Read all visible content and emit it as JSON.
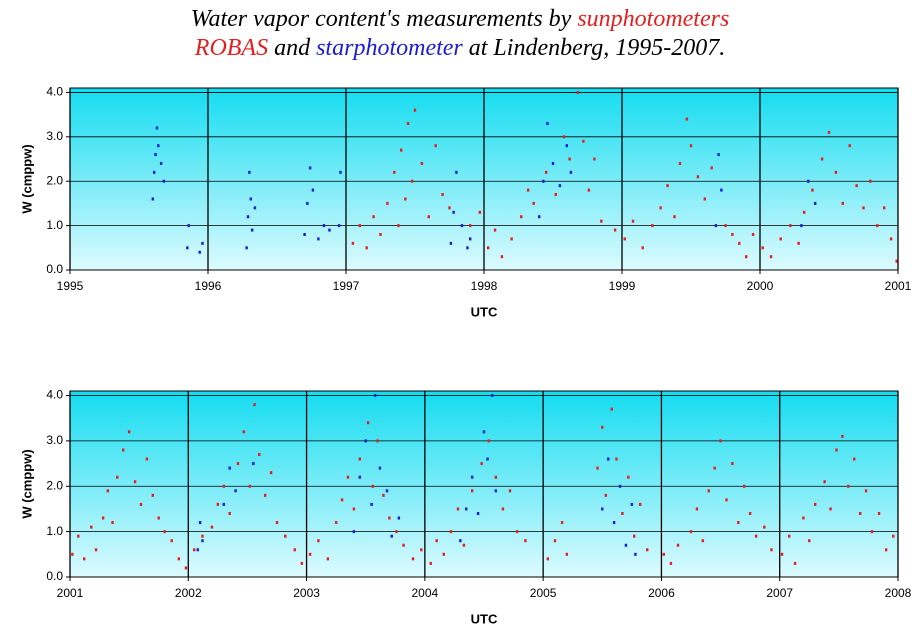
{
  "title": [
    [
      {
        "text": "Water vapor content's measurements by ",
        "color": "#000000"
      },
      {
        "text": "sunphotometers",
        "color": "#e81e1e"
      }
    ],
    [
      {
        "text": "ROBAS",
        "color": "#e81e1e"
      },
      {
        "text": " and ",
        "color": "#000000"
      },
      {
        "text": "starphotometer",
        "color": "#1a1ad8"
      },
      {
        "text": "  at Lindenberg, 1995-2007.",
        "color": "#000000"
      }
    ]
  ],
  "chart_data": [
    {
      "type": "scatter",
      "xlabel": "UTC",
      "ylabel": "W (cmppw)",
      "xlim": [
        1995,
        2001
      ],
      "xticks": [
        1995,
        1996,
        1997,
        1998,
        1999,
        2000,
        2001
      ],
      "ylim": [
        0,
        4.1
      ],
      "yticks": [
        {
          "value": 0,
          "label": "0.0"
        },
        {
          "value": 1,
          "label": "1.0"
        },
        {
          "value": 2,
          "label": "2.0"
        },
        {
          "value": 3,
          "label": "3.0"
        },
        {
          "value": 4,
          "label": "4.0"
        }
      ],
      "grid": true,
      "series": [
        {
          "color": "#e81e1e",
          "x": [
            1997.05,
            1997.1,
            1997.15,
            1997.2,
            1997.25,
            1997.3,
            1997.35,
            1997.38,
            1997.4,
            1997.43,
            1997.45,
            1997.48,
            1997.5,
            1997.55,
            1997.6,
            1997.65,
            1997.7,
            1997.75,
            1997.9,
            1997.97,
            1998.03,
            1998.08,
            1998.13,
            1998.2,
            1998.27,
            1998.32,
            1998.36,
            1998.45,
            1998.52,
            1998.58,
            1998.62,
            1998.68,
            1998.72,
            1998.76,
            1998.8,
            1998.85,
            1998.95,
            1999.02,
            1999.08,
            1999.15,
            1999.22,
            1999.28,
            1999.33,
            1999.38,
            1999.42,
            1999.47,
            1999.5,
            1999.55,
            1999.6,
            1999.65,
            1999.75,
            1999.8,
            1999.85,
            1999.9,
            1999.95,
            2000.02,
            2000.08,
            2000.15,
            2000.22,
            2000.28,
            2000.32,
            2000.38,
            2000.45,
            2000.5,
            2000.55,
            2000.6,
            2000.65,
            2000.7,
            2000.75,
            2000.8,
            2000.85,
            2000.9,
            2000.95,
            2000.99
          ],
          "values": [
            0.6,
            1.0,
            0.5,
            1.2,
            0.8,
            1.5,
            2.2,
            1.0,
            2.7,
            1.6,
            3.3,
            2.0,
            3.6,
            2.4,
            1.2,
            2.8,
            1.7,
            1.4,
            1.0,
            1.3,
            0.5,
            0.9,
            0.3,
            0.7,
            1.2,
            1.8,
            1.5,
            2.2,
            1.7,
            3.0,
            2.5,
            4.0,
            2.9,
            1.8,
            2.5,
            1.1,
            0.9,
            0.7,
            1.1,
            0.5,
            1.0,
            1.4,
            1.9,
            1.2,
            2.4,
            3.4,
            2.8,
            2.1,
            1.6,
            2.3,
            1.0,
            0.8,
            0.6,
            0.3,
            0.8,
            0.5,
            0.3,
            0.7,
            1.0,
            0.6,
            1.3,
            1.8,
            2.5,
            3.1,
            2.2,
            1.5,
            2.8,
            1.9,
            1.4,
            2.0,
            1.0,
            1.4,
            0.7,
            0.2
          ]
        },
        {
          "color": "#1a1ad8",
          "x": [
            1995.6,
            1995.61,
            1995.62,
            1995.63,
            1995.64,
            1995.66,
            1995.68,
            1995.85,
            1995.86,
            1995.94,
            1995.96,
            1996.28,
            1996.29,
            1996.3,
            1996.31,
            1996.32,
            1996.34,
            1996.7,
            1996.72,
            1996.74,
            1996.76,
            1996.8,
            1996.84,
            1996.88,
            1996.95,
            1996.96,
            1997.76,
            1997.78,
            1997.8,
            1997.84,
            1997.88,
            1997.9,
            1998.4,
            1998.43,
            1998.46,
            1998.5,
            1998.55,
            1998.6,
            1998.63,
            1999.68,
            1999.7,
            1999.72,
            2000.3,
            2000.35,
            2000.4
          ],
          "values": [
            1.6,
            2.2,
            2.6,
            3.2,
            2.8,
            2.4,
            2.0,
            0.5,
            1.0,
            0.4,
            0.6,
            0.5,
            1.2,
            2.2,
            1.6,
            0.9,
            1.4,
            0.8,
            1.5,
            2.3,
            1.8,
            0.7,
            1.0,
            0.9,
            1.0,
            2.2,
            0.6,
            1.3,
            2.2,
            1.0,
            0.5,
            0.7,
            1.2,
            2.0,
            3.3,
            2.4,
            1.9,
            2.8,
            2.2,
            1.0,
            2.6,
            1.8,
            1.0,
            2.0,
            1.5
          ]
        }
      ]
    },
    {
      "type": "scatter",
      "xlabel": "UTC",
      "ylabel": "W (cmppw)",
      "xlim": [
        2001,
        2008
      ],
      "xticks": [
        2001,
        2002,
        2003,
        2004,
        2005,
        2006,
        2007,
        2008
      ],
      "ylim": [
        0,
        4.1
      ],
      "yticks": [
        {
          "value": 0,
          "label": "0.0"
        },
        {
          "value": 1,
          "label": "1.0"
        },
        {
          "value": 2,
          "label": "2.0"
        },
        {
          "value": 3,
          "label": "3.0"
        },
        {
          "value": 4,
          "label": "4.0"
        }
      ],
      "grid": true,
      "series": [
        {
          "color": "#e81e1e",
          "x": [
            2001.02,
            2001.07,
            2001.12,
            2001.18,
            2001.22,
            2001.28,
            2001.32,
            2001.36,
            2001.4,
            2001.45,
            2001.5,
            2001.55,
            2001.6,
            2001.65,
            2001.7,
            2001.75,
            2001.8,
            2001.86,
            2001.92,
            2001.98,
            2002.05,
            2002.12,
            2002.2,
            2002.25,
            2002.3,
            2002.35,
            2002.42,
            2002.47,
            2002.52,
            2002.56,
            2002.6,
            2002.65,
            2002.7,
            2002.75,
            2002.82,
            2002.9,
            2002.96,
            2003.03,
            2003.1,
            2003.18,
            2003.25,
            2003.3,
            2003.35,
            2003.4,
            2003.45,
            2003.52,
            2003.56,
            2003.6,
            2003.65,
            2003.7,
            2003.76,
            2003.82,
            2003.9,
            2003.97,
            2004.05,
            2004.1,
            2004.16,
            2004.22,
            2004.28,
            2004.33,
            2004.4,
            2004.48,
            2004.54,
            2004.6,
            2004.66,
            2004.72,
            2004.78,
            2004.85,
            2005.04,
            2005.1,
            2005.16,
            2005.2,
            2005.46,
            2005.5,
            2005.53,
            2005.58,
            2005.62,
            2005.67,
            2005.72,
            2005.77,
            2005.82,
            2005.88,
            2006.02,
            2006.08,
            2006.14,
            2006.25,
            2006.3,
            2006.35,
            2006.4,
            2006.45,
            2006.5,
            2006.55,
            2006.6,
            2006.65,
            2006.7,
            2006.75,
            2006.8,
            2006.87,
            2006.93,
            2007.02,
            2007.08,
            2007.13,
            2007.2,
            2007.25,
            2007.3,
            2007.38,
            2007.43,
            2007.48,
            2007.53,
            2007.58,
            2007.63,
            2007.68,
            2007.73,
            2007.78,
            2007.84,
            2007.9,
            2007.96
          ],
          "values": [
            0.5,
            0.9,
            0.4,
            1.1,
            0.6,
            1.3,
            1.9,
            1.2,
            2.2,
            2.8,
            3.2,
            2.1,
            1.6,
            2.6,
            1.8,
            1.3,
            1.0,
            0.8,
            0.4,
            0.2,
            0.6,
            0.9,
            1.1,
            1.6,
            2.0,
            1.4,
            2.5,
            3.2,
            2.0,
            3.8,
            2.7,
            1.8,
            2.3,
            1.2,
            0.9,
            0.6,
            0.3,
            0.5,
            0.8,
            0.4,
            1.2,
            1.7,
            2.2,
            1.5,
            2.6,
            3.4,
            2.0,
            3.0,
            1.8,
            1.3,
            1.0,
            0.7,
            0.4,
            0.6,
            0.3,
            0.8,
            0.5,
            1.0,
            1.5,
            0.7,
            1.9,
            2.5,
            3.0,
            2.2,
            1.5,
            1.9,
            1.0,
            0.8,
            0.4,
            0.8,
            1.2,
            0.5,
            2.4,
            3.3,
            1.8,
            3.7,
            2.6,
            1.4,
            2.2,
            0.9,
            1.6,
            0.6,
            0.5,
            0.3,
            0.7,
            1.0,
            1.5,
            0.8,
            1.9,
            2.4,
            3.0,
            1.7,
            2.5,
            1.2,
            2.0,
            1.4,
            0.9,
            1.1,
            0.6,
            0.5,
            0.9,
            0.3,
            1.3,
            0.8,
            1.6,
            2.1,
            1.5,
            2.8,
            3.1,
            2.0,
            2.6,
            1.4,
            1.9,
            1.0,
            1.4,
            0.6,
            0.9
          ]
        },
        {
          "color": "#1a1ad8",
          "x": [
            2002.08,
            2002.1,
            2002.12,
            2002.3,
            2002.35,
            2002.4,
            2002.55,
            2003.4,
            2003.45,
            2003.5,
            2003.55,
            2003.58,
            2003.62,
            2003.68,
            2003.72,
            2003.78,
            2004.3,
            2004.35,
            2004.4,
            2004.45,
            2004.5,
            2004.53,
            2004.57,
            2004.6,
            2005.5,
            2005.55,
            2005.6,
            2005.65,
            2005.7,
            2005.75,
            2005.78
          ],
          "values": [
            0.6,
            1.2,
            0.8,
            1.6,
            2.4,
            1.9,
            2.5,
            1.0,
            2.2,
            3.0,
            1.6,
            4.0,
            2.4,
            1.9,
            0.9,
            1.3,
            0.8,
            1.5,
            2.2,
            1.4,
            3.2,
            2.6,
            4.0,
            1.9,
            1.5,
            2.6,
            1.2,
            2.0,
            0.7,
            1.6,
            0.5
          ]
        }
      ]
    }
  ]
}
